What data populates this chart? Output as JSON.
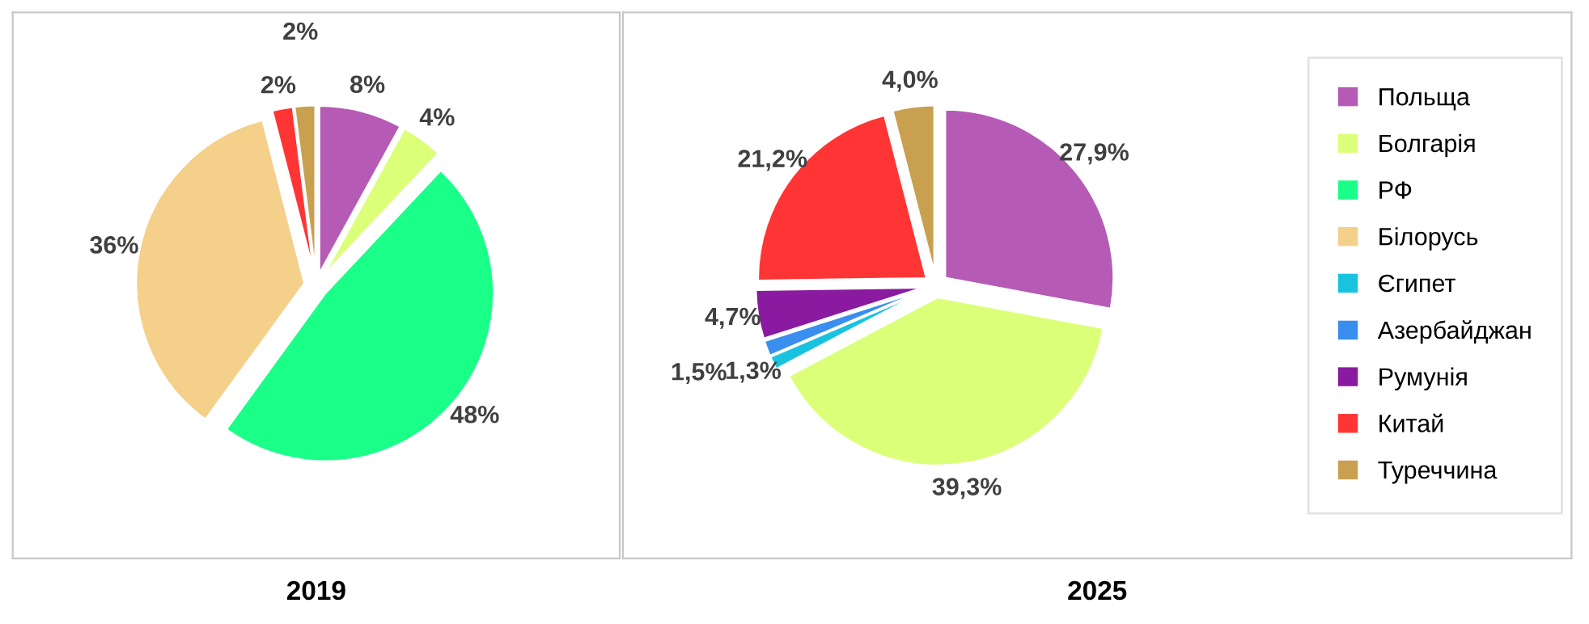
{
  "chart_data": [
    {
      "type": "pie",
      "title": "2019",
      "legend": false,
      "categories": [
        null,
        null,
        null,
        null,
        null,
        null
      ],
      "values": [
        8,
        4,
        48,
        36,
        2,
        2
      ],
      "colors": [
        "#b55ab5",
        "#dcff7a",
        "#1aff88",
        "#f5d08a",
        "#ff3535",
        "#c8a050"
      ],
      "value_labels": [
        "8%",
        "4%",
        "48%",
        "36%",
        "2%",
        "2%"
      ]
    },
    {
      "type": "pie",
      "title": "2025",
      "legend": "right",
      "categories": [
        "Польща",
        "Болгарія",
        "РФ",
        "Білорусь",
        "Єгипет",
        "Азербайджан",
        "Румунія",
        "Китай",
        "Туреччина"
      ],
      "values": [
        27.9,
        39.3,
        0,
        0,
        1.3,
        1.5,
        4.7,
        21.2,
        4.0
      ],
      "colors": [
        "#b55ab5",
        "#dcff7a",
        "#1aff88",
        "#f5d08a",
        "#19c3e0",
        "#3a8ef0",
        "#8a1aa0",
        "#ff3535",
        "#c8a050"
      ],
      "value_labels": [
        "27,9%",
        "39,3%",
        null,
        null,
        "1,3%",
        "1,5%",
        "4,7%",
        "21,2%",
        "4,0%"
      ]
    }
  ]
}
